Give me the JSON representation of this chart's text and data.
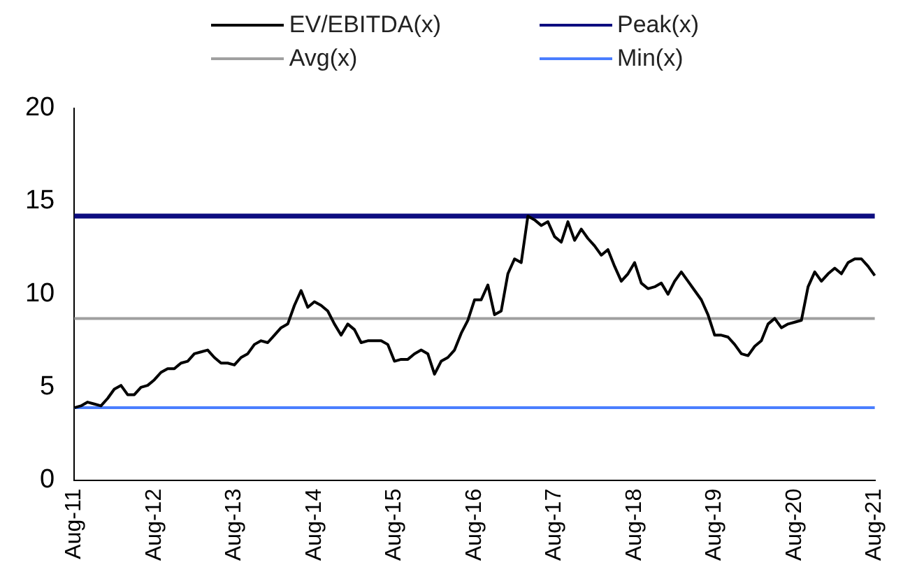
{
  "chart_data": {
    "type": "line",
    "legend": "top",
    "marker": "none",
    "line_style": "solid",
    "ylim": [
      0,
      20
    ],
    "yticks": [
      0,
      5,
      10,
      15,
      20
    ],
    "categories": [
      "Aug-11",
      null,
      null,
      null,
      null,
      null,
      null,
      null,
      null,
      null,
      null,
      null,
      "Aug-12",
      null,
      null,
      null,
      null,
      null,
      null,
      null,
      null,
      null,
      null,
      null,
      "Aug-13",
      null,
      null,
      null,
      null,
      null,
      null,
      null,
      null,
      null,
      null,
      null,
      "Aug-14",
      null,
      null,
      null,
      null,
      null,
      null,
      null,
      null,
      null,
      null,
      null,
      "Aug-15",
      null,
      null,
      null,
      null,
      null,
      null,
      null,
      null,
      null,
      null,
      null,
      "Aug-16",
      null,
      null,
      null,
      null,
      null,
      null,
      null,
      null,
      null,
      null,
      null,
      "Aug-17",
      null,
      null,
      null,
      null,
      null,
      null,
      null,
      null,
      null,
      null,
      null,
      "Aug-18",
      null,
      null,
      null,
      null,
      null,
      null,
      null,
      null,
      null,
      null,
      null,
      "Aug-19",
      null,
      null,
      null,
      null,
      null,
      null,
      null,
      null,
      null,
      null,
      null,
      "Aug-20",
      null,
      null,
      null,
      null,
      null,
      null,
      null,
      null,
      null,
      null,
      null,
      "Aug-21"
    ],
    "series": [
      {
        "name": "EV/EBITDA(x)",
        "color": "#000000",
        "values": [
          3.9,
          4.0,
          4.2,
          4.1,
          4.0,
          4.4,
          4.9,
          5.1,
          4.6,
          4.6,
          5.0,
          5.1,
          5.4,
          5.8,
          6.0,
          6.0,
          6.3,
          6.4,
          6.8,
          6.9,
          7.0,
          6.6,
          6.3,
          6.3,
          6.2,
          6.6,
          6.8,
          7.3,
          7.5,
          7.4,
          7.8,
          8.2,
          8.4,
          9.4,
          10.2,
          9.3,
          9.6,
          9.4,
          9.1,
          8.4,
          7.8,
          8.4,
          8.1,
          7.4,
          7.5,
          7.5,
          7.5,
          7.3,
          6.4,
          6.5,
          6.5,
          6.8,
          7.0,
          6.8,
          5.7,
          6.4,
          6.6,
          7.0,
          7.9,
          8.6,
          9.7,
          9.7,
          10.5,
          8.9,
          9.1,
          11.1,
          11.9,
          11.7,
          14.2,
          14.0,
          13.7,
          13.9,
          13.1,
          12.8,
          13.9,
          12.9,
          13.5,
          13.0,
          12.6,
          12.1,
          12.4,
          11.5,
          10.7,
          11.1,
          11.7,
          10.6,
          10.3,
          10.4,
          10.6,
          10.0,
          10.7,
          11.2,
          10.7,
          10.2,
          9.7,
          8.9,
          7.8,
          7.8,
          7.7,
          7.3,
          6.8,
          6.7,
          7.2,
          7.5,
          8.4,
          8.7,
          8.2,
          8.4,
          8.5,
          8.6,
          10.4,
          11.2,
          10.7,
          11.1,
          11.4,
          11.1,
          11.7,
          11.9,
          11.9,
          11.5,
          11.0
        ]
      },
      {
        "name": "Peak(x)",
        "color": "#0d0d80",
        "values": [
          14.2,
          14.2,
          14.2,
          14.2,
          14.2,
          14.2,
          14.2,
          14.2,
          14.2,
          14.2,
          14.2,
          14.2,
          14.2,
          14.2,
          14.2,
          14.2,
          14.2,
          14.2,
          14.2,
          14.2,
          14.2,
          14.2,
          14.2,
          14.2,
          14.2,
          14.2,
          14.2,
          14.2,
          14.2,
          14.2,
          14.2,
          14.2,
          14.2,
          14.2,
          14.2,
          14.2,
          14.2,
          14.2,
          14.2,
          14.2,
          14.2,
          14.2,
          14.2,
          14.2,
          14.2,
          14.2,
          14.2,
          14.2,
          14.2,
          14.2,
          14.2,
          14.2,
          14.2,
          14.2,
          14.2,
          14.2,
          14.2,
          14.2,
          14.2,
          14.2,
          14.2,
          14.2,
          14.2,
          14.2,
          14.2,
          14.2,
          14.2,
          14.2,
          14.2,
          14.2,
          14.2,
          14.2,
          14.2,
          14.2,
          14.2,
          14.2,
          14.2,
          14.2,
          14.2,
          14.2,
          14.2,
          14.2,
          14.2,
          14.2,
          14.2,
          14.2,
          14.2,
          14.2,
          14.2,
          14.2,
          14.2,
          14.2,
          14.2,
          14.2,
          14.2,
          14.2,
          14.2,
          14.2,
          14.2,
          14.2,
          14.2,
          14.2,
          14.2,
          14.2,
          14.2,
          14.2,
          14.2,
          14.2,
          14.2,
          14.2,
          14.2,
          14.2,
          14.2,
          14.2,
          14.2,
          14.2,
          14.2,
          14.2,
          14.2,
          14.2,
          14.2
        ]
      },
      {
        "name": "Avg(x)",
        "color": "#a0a0a0",
        "values": [
          8.7,
          8.7,
          8.7,
          8.7,
          8.7,
          8.7,
          8.7,
          8.7,
          8.7,
          8.7,
          8.7,
          8.7,
          8.7,
          8.7,
          8.7,
          8.7,
          8.7,
          8.7,
          8.7,
          8.7,
          8.7,
          8.7,
          8.7,
          8.7,
          8.7,
          8.7,
          8.7,
          8.7,
          8.7,
          8.7,
          8.7,
          8.7,
          8.7,
          8.7,
          8.7,
          8.7,
          8.7,
          8.7,
          8.7,
          8.7,
          8.7,
          8.7,
          8.7,
          8.7,
          8.7,
          8.7,
          8.7,
          8.7,
          8.7,
          8.7,
          8.7,
          8.7,
          8.7,
          8.7,
          8.7,
          8.7,
          8.7,
          8.7,
          8.7,
          8.7,
          8.7,
          8.7,
          8.7,
          8.7,
          8.7,
          8.7,
          8.7,
          8.7,
          8.7,
          8.7,
          8.7,
          8.7,
          8.7,
          8.7,
          8.7,
          8.7,
          8.7,
          8.7,
          8.7,
          8.7,
          8.7,
          8.7,
          8.7,
          8.7,
          8.7,
          8.7,
          8.7,
          8.7,
          8.7,
          8.7,
          8.7,
          8.7,
          8.7,
          8.7,
          8.7,
          8.7,
          8.7,
          8.7,
          8.7,
          8.7,
          8.7,
          8.7,
          8.7,
          8.7,
          8.7,
          8.7,
          8.7,
          8.7,
          8.7,
          8.7,
          8.7,
          8.7,
          8.7,
          8.7,
          8.7,
          8.7,
          8.7,
          8.7,
          8.7,
          8.7,
          8.7
        ]
      },
      {
        "name": "Min(x)",
        "color": "#4a7eff",
        "values": [
          3.9,
          3.9,
          3.9,
          3.9,
          3.9,
          3.9,
          3.9,
          3.9,
          3.9,
          3.9,
          3.9,
          3.9,
          3.9,
          3.9,
          3.9,
          3.9,
          3.9,
          3.9,
          3.9,
          3.9,
          3.9,
          3.9,
          3.9,
          3.9,
          3.9,
          3.9,
          3.9,
          3.9,
          3.9,
          3.9,
          3.9,
          3.9,
          3.9,
          3.9,
          3.9,
          3.9,
          3.9,
          3.9,
          3.9,
          3.9,
          3.9,
          3.9,
          3.9,
          3.9,
          3.9,
          3.9,
          3.9,
          3.9,
          3.9,
          3.9,
          3.9,
          3.9,
          3.9,
          3.9,
          3.9,
          3.9,
          3.9,
          3.9,
          3.9,
          3.9,
          3.9,
          3.9,
          3.9,
          3.9,
          3.9,
          3.9,
          3.9,
          3.9,
          3.9,
          3.9,
          3.9,
          3.9,
          3.9,
          3.9,
          3.9,
          3.9,
          3.9,
          3.9,
          3.9,
          3.9,
          3.9,
          3.9,
          3.9,
          3.9,
          3.9,
          3.9,
          3.9,
          3.9,
          3.9,
          3.9,
          3.9,
          3.9,
          3.9,
          3.9,
          3.9,
          3.9,
          3.9,
          3.9,
          3.9,
          3.9,
          3.9,
          3.9,
          3.9,
          3.9,
          3.9,
          3.9,
          3.9,
          3.9,
          3.9,
          3.9,
          3.9,
          3.9,
          3.9,
          3.9,
          3.9,
          3.9,
          3.9,
          3.9,
          3.9,
          3.9,
          3.9
        ]
      }
    ]
  }
}
